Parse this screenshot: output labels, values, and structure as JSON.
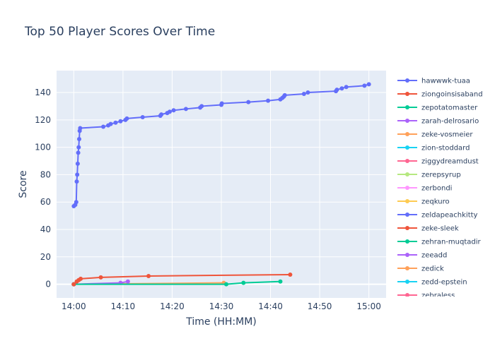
{
  "chart_data": {
    "type": "line",
    "title": "Top 50 Player Scores Over Time",
    "xlabel": "Time (HH:MM)",
    "ylabel": "Score",
    "x_ticks": [
      "14:00",
      "14:10",
      "14:20",
      "14:30",
      "14:40",
      "14:50",
      "15:00"
    ],
    "y_ticks": [
      "0",
      "20",
      "40",
      "60",
      "80",
      "100",
      "120",
      "140"
    ],
    "xlim_minutes": [
      -3.5,
      63.5
    ],
    "ylim": [
      -10,
      156
    ],
    "grid": true,
    "legend_position": "right",
    "series": [
      {
        "name": "hawwwk-tuaa",
        "color": "#636efa",
        "points": [
          [
            0.0,
            57
          ],
          [
            0.3,
            58
          ],
          [
            0.5,
            60
          ],
          [
            0.6,
            75
          ],
          [
            0.7,
            80
          ],
          [
            0.8,
            88
          ],
          [
            0.9,
            96
          ],
          [
            1.0,
            100
          ],
          [
            1.1,
            106
          ],
          [
            1.2,
            112
          ],
          [
            1.3,
            114
          ],
          [
            6.0,
            115
          ],
          [
            7.0,
            116
          ],
          [
            7.5,
            117
          ],
          [
            8.5,
            118
          ],
          [
            9.5,
            119
          ],
          [
            10.5,
            120
          ],
          [
            10.8,
            121
          ],
          [
            14.0,
            122
          ],
          [
            17.6,
            123
          ],
          [
            17.8,
            124
          ],
          [
            19.0,
            125
          ],
          [
            19.5,
            126
          ],
          [
            20.3,
            127
          ],
          [
            22.8,
            128
          ],
          [
            25.7,
            129
          ],
          [
            26.0,
            130
          ],
          [
            30.0,
            131
          ],
          [
            30.1,
            132
          ],
          [
            35.5,
            133
          ],
          [
            39.5,
            134
          ],
          [
            42.0,
            135
          ],
          [
            42.4,
            136
          ],
          [
            42.7,
            137
          ],
          [
            42.9,
            138
          ],
          [
            46.8,
            139
          ],
          [
            47.6,
            140
          ],
          [
            53.3,
            141
          ],
          [
            53.5,
            142
          ],
          [
            54.5,
            143
          ],
          [
            55.4,
            144
          ],
          [
            59.1,
            145
          ],
          [
            60.0,
            146
          ]
        ]
      },
      {
        "name": "ziongoinsisaband",
        "color": "#ef553b",
        "points": [
          [
            0.0,
            0
          ],
          [
            0.6,
            2
          ],
          [
            1.0,
            3
          ],
          [
            1.4,
            4
          ],
          [
            5.5,
            5
          ],
          [
            15.2,
            6
          ],
          [
            44.0,
            7
          ]
        ]
      },
      {
        "name": "zepotatomaster",
        "color": "#00cc96",
        "points": [
          [
            0.0,
            0
          ],
          [
            31.0,
            0
          ],
          [
            34.5,
            1
          ],
          [
            42.0,
            2
          ]
        ]
      },
      {
        "name": "zarah-delrosario",
        "color": "#ab63fa",
        "points": [
          [
            0.0,
            0
          ],
          [
            9.5,
            1
          ],
          [
            11.0,
            2
          ]
        ]
      },
      {
        "name": "zeke-vosmeier",
        "color": "#ffa15a",
        "points": [
          [
            0.0,
            0
          ],
          [
            30.5,
            1
          ]
        ]
      },
      {
        "name": "zion-stoddard",
        "color": "#19d3f3",
        "points": [
          [
            0.0,
            0
          ]
        ]
      },
      {
        "name": "ziggydreamdust",
        "color": "#ff6692",
        "points": [
          [
            0.0,
            0
          ]
        ]
      },
      {
        "name": "zerepsyrup",
        "color": "#b6e880",
        "points": [
          [
            0.0,
            0
          ]
        ]
      },
      {
        "name": "zerbondi",
        "color": "#ff97ff",
        "points": [
          [
            0.0,
            0
          ]
        ]
      },
      {
        "name": "zeqkuro",
        "color": "#fecb52",
        "points": [
          [
            0.0,
            0
          ]
        ]
      },
      {
        "name": "zeldapeachkitty",
        "color": "#636efa",
        "points": [
          [
            0.0,
            0
          ]
        ]
      },
      {
        "name": "zeke-sleek",
        "color": "#ef553b",
        "points": [
          [
            0.0,
            0
          ]
        ]
      },
      {
        "name": "zehran-muqtadir",
        "color": "#00cc96",
        "points": [
          [
            0.0,
            0
          ]
        ]
      },
      {
        "name": "zeeadd",
        "color": "#ab63fa",
        "points": [
          [
            0.0,
            0
          ]
        ]
      },
      {
        "name": "zedick",
        "color": "#ffa15a",
        "points": [
          [
            0.0,
            0
          ]
        ]
      },
      {
        "name": "zedd-epstein",
        "color": "#19d3f3",
        "points": [
          [
            0.0,
            0
          ]
        ]
      },
      {
        "name": "zebraless",
        "color": "#ff6692",
        "points": [
          [
            0.0,
            0
          ]
        ]
      }
    ]
  }
}
